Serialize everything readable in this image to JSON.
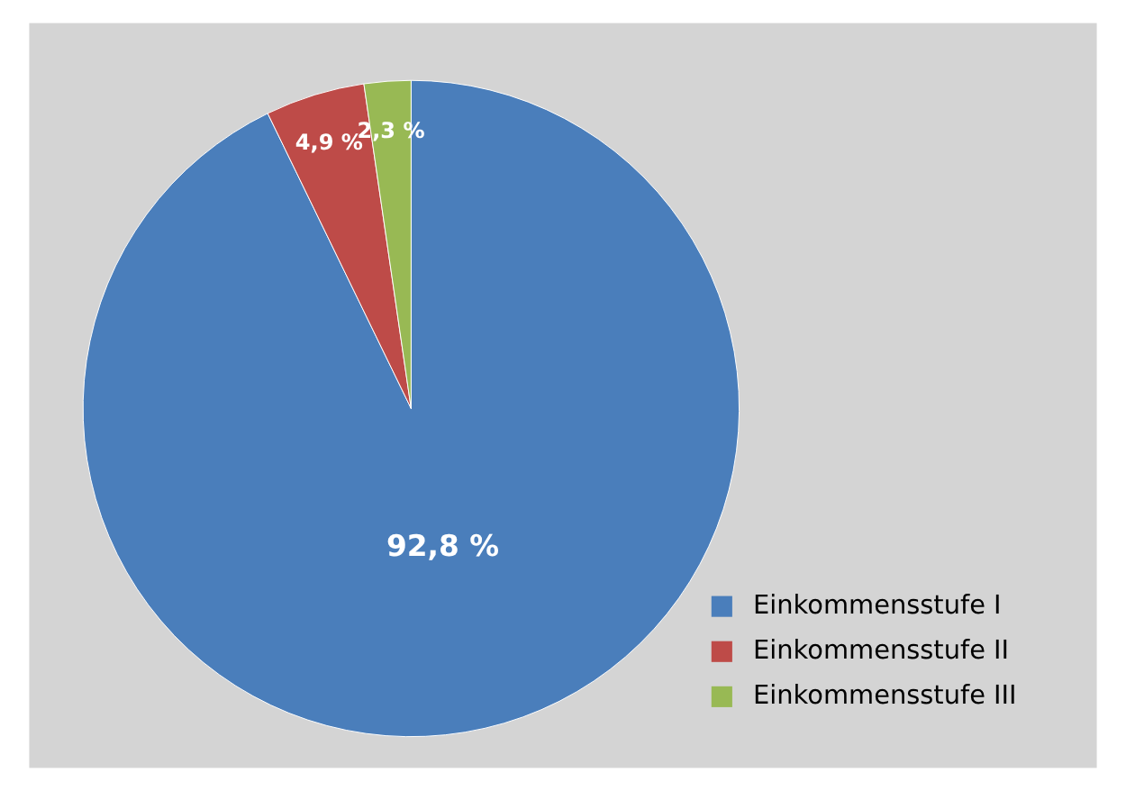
{
  "chart_data": {
    "type": "pie",
    "categories": [
      "Einkommensstufe I",
      "Einkommensstufe II",
      "Einkommensstufe III"
    ],
    "values": [
      92.8,
      4.9,
      2.3
    ],
    "colors": [
      "#4a7ebb",
      "#be4b48",
      "#98b954"
    ],
    "value_labels": [
      "92,8 %",
      "4,9 %",
      "2,3 %"
    ],
    "legend": "bottom right"
  }
}
